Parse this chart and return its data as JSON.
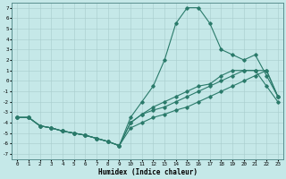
{
  "xlabel": "Humidex (Indice chaleur)",
  "bg_color": "#c5e8e8",
  "grid_color": "#a8cccc",
  "line_color": "#2a7a6a",
  "ylim": [
    -7.5,
    7.5
  ],
  "xlim": [
    -0.5,
    23.5
  ],
  "yticks": [
    -7,
    -6,
    -5,
    -4,
    -3,
    -2,
    -1,
    0,
    1,
    2,
    3,
    4,
    5,
    6,
    7
  ],
  "xticks": [
    0,
    1,
    2,
    3,
    4,
    5,
    6,
    7,
    8,
    9,
    10,
    11,
    12,
    13,
    14,
    15,
    16,
    17,
    18,
    19,
    20,
    21,
    22,
    23
  ],
  "line_spike_x": [
    0,
    1,
    2,
    3,
    4,
    5,
    6,
    7,
    8,
    9,
    10,
    11,
    12,
    13,
    14,
    15,
    16,
    17,
    18,
    19,
    20,
    21,
    22,
    23
  ],
  "line_spike_y": [
    -3.5,
    -3.5,
    -4.3,
    -4.5,
    -4.8,
    -5.0,
    -5.2,
    -5.5,
    -5.8,
    -6.2,
    -3.5,
    -2.0,
    -0.5,
    2.0,
    5.5,
    7.0,
    7.0,
    5.5,
    3.0,
    2.5,
    2.0,
    2.5,
    0.5,
    -1.5
  ],
  "line_a_x": [
    0,
    1,
    2,
    3,
    4,
    5,
    6,
    7,
    8,
    9,
    10,
    11,
    12,
    13,
    14,
    15,
    16,
    17,
    18,
    19,
    20,
    21,
    22,
    23
  ],
  "line_a_y": [
    -3.5,
    -3.5,
    -4.3,
    -4.5,
    -4.8,
    -5.0,
    -5.2,
    -5.5,
    -5.8,
    -6.2,
    -4.0,
    -3.2,
    -2.5,
    -2.0,
    -1.5,
    -1.0,
    -0.5,
    -0.3,
    0.5,
    1.0,
    1.0,
    1.0,
    -0.5,
    -2.0
  ],
  "line_b_x": [
    0,
    1,
    2,
    3,
    4,
    5,
    6,
    7,
    8,
    9,
    10,
    11,
    12,
    13,
    14,
    15,
    16,
    17,
    18,
    19,
    20,
    21,
    22,
    23
  ],
  "line_b_y": [
    -3.5,
    -3.5,
    -4.3,
    -4.5,
    -4.8,
    -5.0,
    -5.2,
    -5.5,
    -5.8,
    -6.2,
    -4.0,
    -3.2,
    -2.8,
    -2.5,
    -2.0,
    -1.5,
    -1.0,
    -0.5,
    0.0,
    0.5,
    1.0,
    1.0,
    1.0,
    -1.5
  ],
  "line_c_x": [
    0,
    1,
    2,
    3,
    4,
    5,
    6,
    7,
    8,
    9,
    10,
    11,
    12,
    13,
    14,
    15,
    16,
    17,
    18,
    19,
    20,
    21,
    22,
    23
  ],
  "line_c_y": [
    -3.5,
    -3.5,
    -4.3,
    -4.5,
    -4.8,
    -5.0,
    -5.2,
    -5.5,
    -5.8,
    -6.2,
    -4.5,
    -4.0,
    -3.5,
    -3.2,
    -2.8,
    -2.5,
    -2.0,
    -1.5,
    -1.0,
    -0.5,
    0.0,
    0.5,
    1.0,
    -1.5
  ]
}
